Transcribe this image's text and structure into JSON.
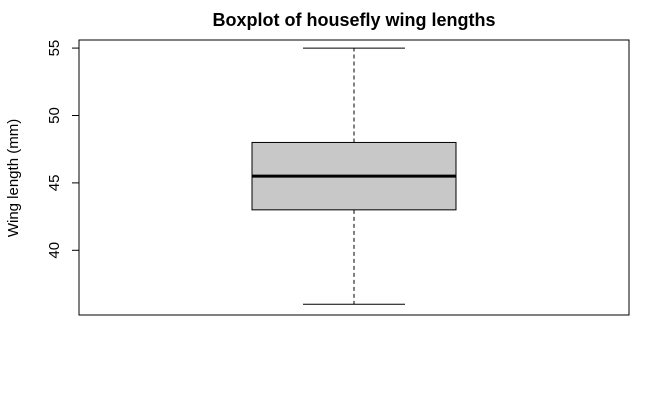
{
  "chart_data": {
    "type": "boxplot",
    "title": "Boxplot of housefly wing lengths",
    "xlabel": "",
    "ylabel": "Wing length (mm)",
    "ylim": [
      35.2,
      55.6
    ],
    "yticks": [
      40,
      45,
      50,
      55
    ],
    "grid": false,
    "box": {
      "min": 36,
      "q1": 43,
      "median": 45.5,
      "q3": 48,
      "max": 55
    },
    "colors": {
      "box_fill": "#c8c8c8",
      "stroke": "#000000",
      "background": "#ffffff"
    }
  }
}
